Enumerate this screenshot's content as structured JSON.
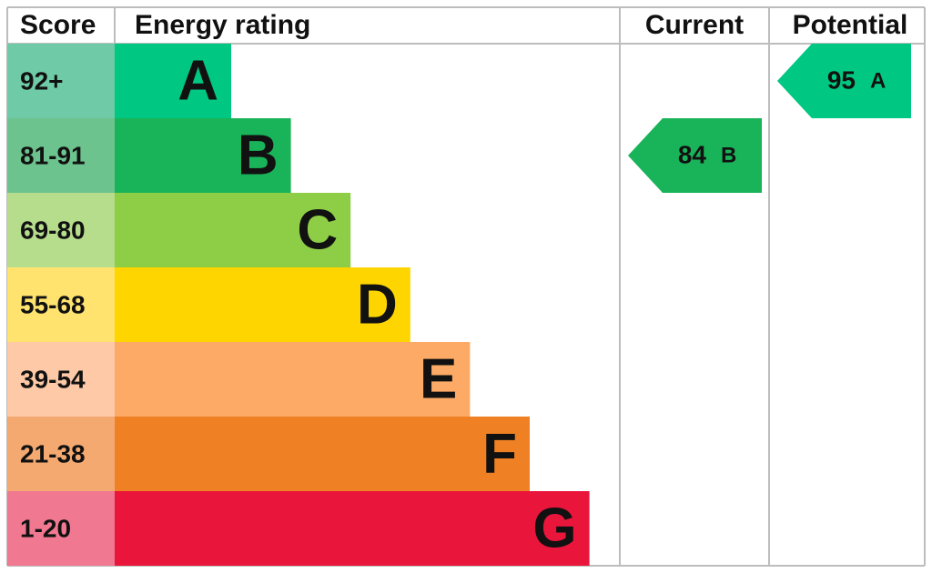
{
  "headers": {
    "score": "Score",
    "rating": "Energy rating",
    "current": "Current",
    "potential": "Potential"
  },
  "bands": [
    {
      "score": "92+",
      "letter": "A",
      "color": "#00c781",
      "score_color": "#6fcba7"
    },
    {
      "score": "81-91",
      "letter": "B",
      "color": "#19b459",
      "score_color": "#6cc38d"
    },
    {
      "score": "69-80",
      "letter": "C",
      "color": "#8dce46",
      "score_color": "#b6dd8c"
    },
    {
      "score": "55-68",
      "letter": "D",
      "color": "#ffd500",
      "score_color": "#ffe36e"
    },
    {
      "score": "39-54",
      "letter": "E",
      "color": "#fcaa65",
      "score_color": "#fdc9a6"
    },
    {
      "score": "21-38",
      "letter": "F",
      "color": "#ef8023",
      "score_color": "#f4a970"
    },
    {
      "score": "1-20",
      "letter": "G",
      "color": "#e9153b",
      "score_color": "#f07890"
    }
  ],
  "current": {
    "value": 84,
    "letter": "B"
  },
  "potential": {
    "value": 95,
    "letter": "A"
  }
}
